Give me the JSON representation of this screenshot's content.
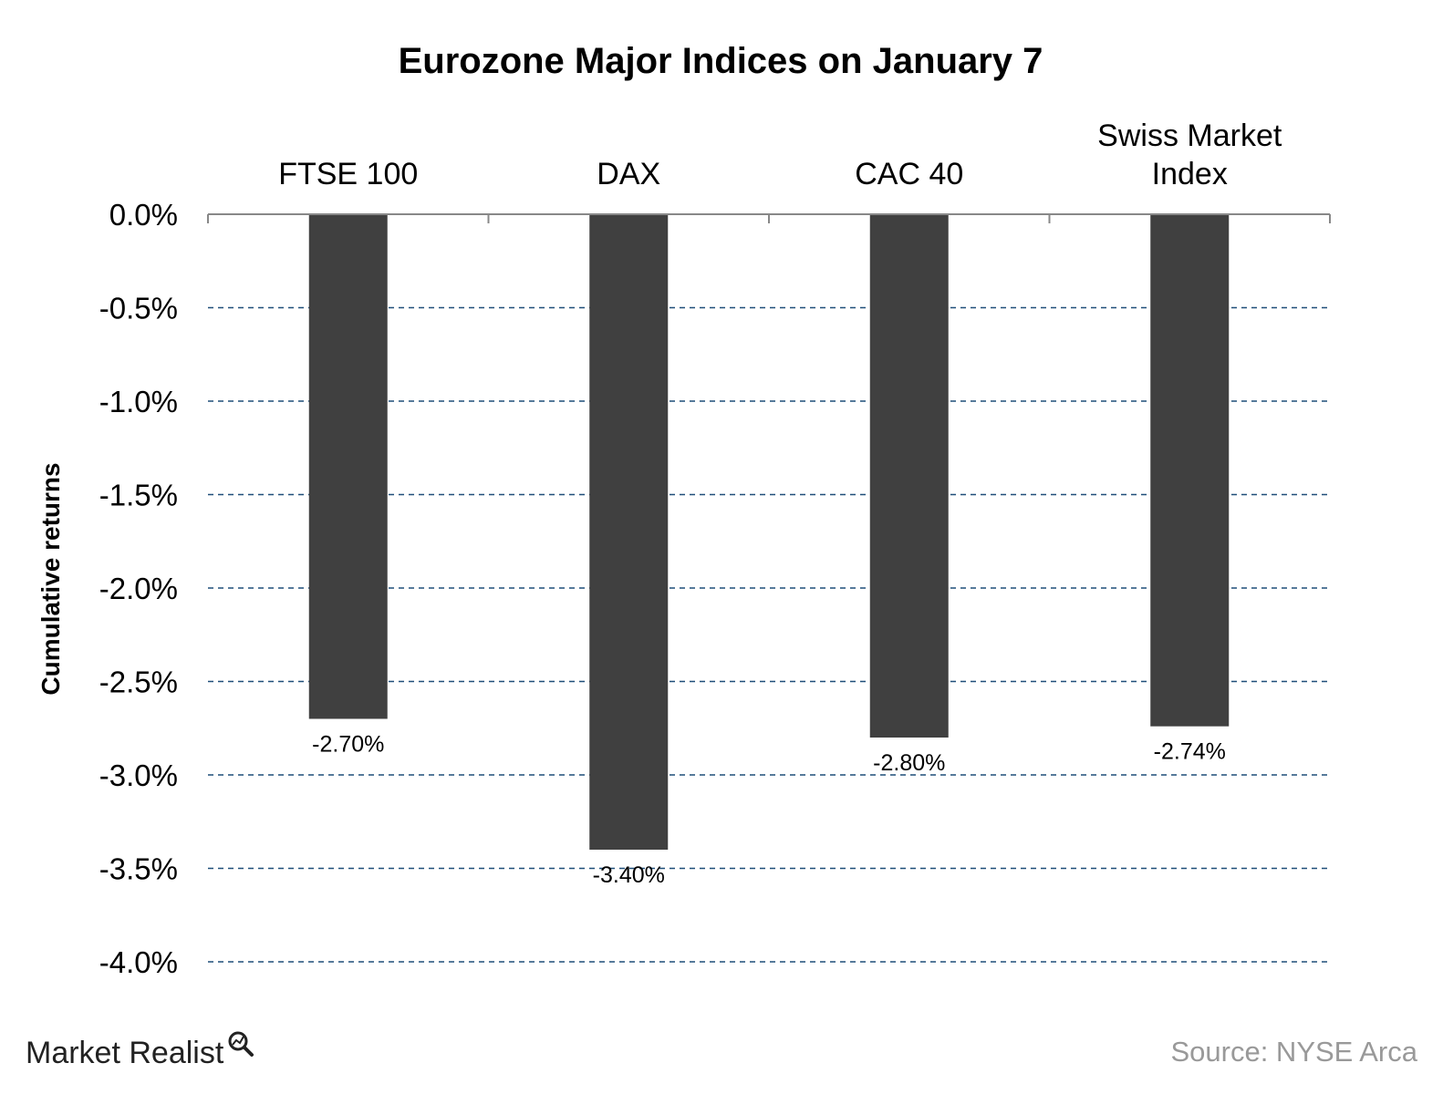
{
  "chart_data": {
    "type": "bar",
    "title": "Eurozone Major Indices on January 7",
    "ylabel": "Cumulative returns",
    "xlabel": "",
    "categories": [
      [
        "FTSE 100"
      ],
      [
        "DAX"
      ],
      [
        "CAC 40"
      ],
      [
        "Swiss Market",
        "Index"
      ]
    ],
    "values": [
      -2.7,
      -3.4,
      -2.8,
      -2.74
    ],
    "data_labels": [
      "-2.70%",
      "-3.40%",
      "-2.80%",
      "-2.74%"
    ],
    "ylim": [
      -4.0,
      0.0
    ],
    "yticks": [
      0.0,
      -0.5,
      -1.0,
      -1.5,
      -2.0,
      -2.5,
      -3.0,
      -3.5,
      -4.0
    ],
    "ytick_labels": [
      "0.0%",
      "-0.5%",
      "-1.0%",
      "-1.5%",
      "-2.0%",
      "-2.5%",
      "-3.0%",
      "-3.5%",
      "-4.0%"
    ],
    "grid": true,
    "category_axis_position": "top",
    "bar_color": "#404040",
    "grid_color": "#1f4e79"
  },
  "footer": {
    "brand": "Market Realist",
    "source": "Source: NYSE Arca"
  }
}
